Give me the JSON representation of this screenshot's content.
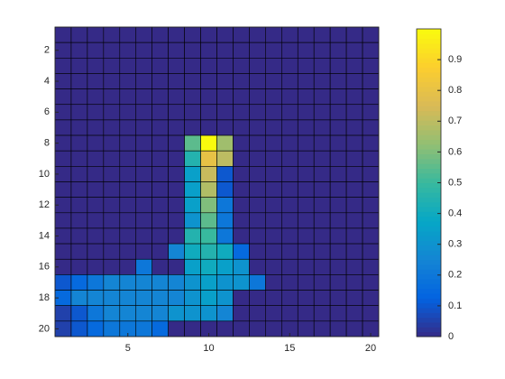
{
  "chart_data": {
    "type": "heatmap",
    "colormap": "parula",
    "grid": true,
    "xlim": [
      0.5,
      20.5
    ],
    "xticks": [
      5,
      10,
      15,
      20
    ],
    "ylim": [
      0.5,
      20.5
    ],
    "yticks": [
      2,
      4,
      6,
      8,
      10,
      12,
      14,
      16,
      18,
      20
    ],
    "y_reversed": true,
    "clim": [
      0,
      1
    ],
    "colorbar_ticks": [
      0,
      0.1,
      0.2,
      0.3,
      0.4,
      0.5,
      0.6,
      0.7,
      0.8,
      0.9
    ],
    "z": [
      [
        0,
        0,
        0,
        0,
        0,
        0,
        0,
        0,
        0,
        0,
        0,
        0,
        0,
        0,
        0,
        0,
        0,
        0,
        0,
        0
      ],
      [
        0,
        0,
        0,
        0,
        0,
        0,
        0,
        0,
        0,
        0,
        0,
        0,
        0,
        0,
        0,
        0,
        0,
        0,
        0,
        0
      ],
      [
        0,
        0,
        0,
        0,
        0,
        0,
        0,
        0,
        0,
        0,
        0,
        0,
        0,
        0,
        0,
        0,
        0,
        0,
        0,
        0
      ],
      [
        0,
        0,
        0,
        0,
        0,
        0,
        0,
        0,
        0,
        0,
        0,
        0,
        0,
        0,
        0,
        0,
        0,
        0,
        0,
        0
      ],
      [
        0,
        0,
        0,
        0,
        0,
        0,
        0,
        0,
        0,
        0,
        0,
        0,
        0,
        0,
        0,
        0,
        0,
        0,
        0,
        0
      ],
      [
        0,
        0,
        0,
        0,
        0,
        0,
        0,
        0,
        0,
        0,
        0,
        0,
        0,
        0,
        0,
        0,
        0,
        0,
        0,
        0
      ],
      [
        0,
        0,
        0,
        0,
        0,
        0,
        0,
        0,
        0,
        0,
        0,
        0,
        0,
        0,
        0,
        0,
        0,
        0,
        0,
        0
      ],
      [
        0,
        0,
        0,
        0,
        0,
        0,
        0,
        0,
        0.55,
        1,
        0.65,
        0,
        0,
        0,
        0,
        0,
        0,
        0,
        0,
        0
      ],
      [
        0,
        0,
        0,
        0,
        0,
        0,
        0,
        0,
        0.45,
        0.8,
        0.7,
        0,
        0,
        0,
        0,
        0,
        0,
        0,
        0,
        0
      ],
      [
        0,
        0,
        0,
        0,
        0,
        0,
        0,
        0,
        0.35,
        0.72,
        0.1,
        0,
        0,
        0,
        0,
        0,
        0,
        0,
        0,
        0
      ],
      [
        0,
        0,
        0,
        0,
        0,
        0,
        0,
        0,
        0.35,
        0.68,
        0.1,
        0,
        0,
        0,
        0,
        0,
        0,
        0,
        0,
        0
      ],
      [
        0,
        0,
        0,
        0,
        0,
        0,
        0,
        0,
        0.35,
        0.6,
        0.2,
        0,
        0,
        0,
        0,
        0,
        0,
        0,
        0,
        0
      ],
      [
        0,
        0,
        0,
        0,
        0,
        0,
        0,
        0,
        0.3,
        0.55,
        0.2,
        0,
        0,
        0,
        0,
        0,
        0,
        0,
        0,
        0
      ],
      [
        0,
        0,
        0,
        0,
        0,
        0,
        0,
        0,
        0.45,
        0.5,
        0.2,
        0,
        0,
        0,
        0,
        0,
        0,
        0,
        0,
        0
      ],
      [
        0,
        0,
        0,
        0,
        0,
        0,
        0,
        0.25,
        0.4,
        0.45,
        0.4,
        0.15,
        0,
        0,
        0,
        0,
        0,
        0,
        0,
        0
      ],
      [
        0,
        0,
        0,
        0,
        0,
        0.2,
        0,
        0,
        0.35,
        0.4,
        0.35,
        0.3,
        0,
        0,
        0,
        0,
        0,
        0,
        0,
        0
      ],
      [
        0.1,
        0.15,
        0.2,
        0.25,
        0.25,
        0.25,
        0.25,
        0.25,
        0.3,
        0.35,
        0.3,
        0.3,
        0.2,
        0,
        0,
        0,
        0,
        0,
        0,
        0
      ],
      [
        0.15,
        0.25,
        0.25,
        0.25,
        0.25,
        0.25,
        0.25,
        0.25,
        0.3,
        0.35,
        0.3,
        0,
        0,
        0,
        0,
        0,
        0,
        0,
        0,
        0
      ],
      [
        0.05,
        0.1,
        0.2,
        0.25,
        0.25,
        0.25,
        0.25,
        0.3,
        0.3,
        0.3,
        0.25,
        0,
        0,
        0,
        0,
        0,
        0,
        0,
        0,
        0
      ],
      [
        0.05,
        0.1,
        0.15,
        0.2,
        0.2,
        0.2,
        0.15,
        0,
        0,
        0,
        0,
        0,
        0,
        0,
        0,
        0,
        0,
        0,
        0,
        0
      ]
    ]
  }
}
